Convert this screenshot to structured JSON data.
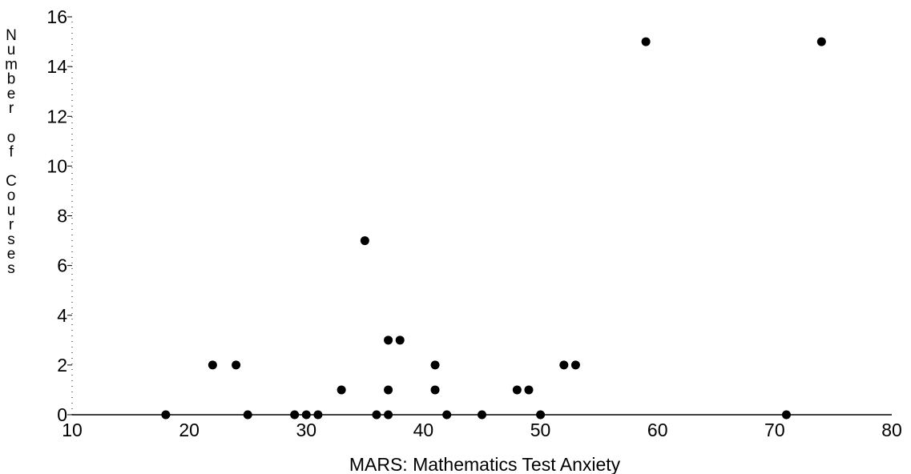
{
  "chart_data": {
    "type": "scatter",
    "title": "",
    "xlabel": "MARS: Mathematics Test Anxiety",
    "ylabel": "Number of Courses",
    "xlim": [
      10,
      80
    ],
    "ylim": [
      0,
      16
    ],
    "x_ticks": [
      10,
      20,
      30,
      40,
      50,
      60,
      70,
      80
    ],
    "y_ticks": [
      0,
      2,
      4,
      6,
      8,
      10,
      12,
      14,
      16
    ],
    "grid": false,
    "legend": "none",
    "marker_color": "#000000",
    "points": [
      {
        "x": 18,
        "y": 0
      },
      {
        "x": 22,
        "y": 2
      },
      {
        "x": 24,
        "y": 2
      },
      {
        "x": 25,
        "y": 0
      },
      {
        "x": 29,
        "y": 0
      },
      {
        "x": 30,
        "y": 0
      },
      {
        "x": 31,
        "y": 0
      },
      {
        "x": 33,
        "y": 1
      },
      {
        "x": 35,
        "y": 7
      },
      {
        "x": 36,
        "y": 0
      },
      {
        "x": 37,
        "y": 0
      },
      {
        "x": 37,
        "y": 1
      },
      {
        "x": 37,
        "y": 3
      },
      {
        "x": 38,
        "y": 3
      },
      {
        "x": 41,
        "y": 2
      },
      {
        "x": 41,
        "y": 1
      },
      {
        "x": 42,
        "y": 0
      },
      {
        "x": 45,
        "y": 0
      },
      {
        "x": 48,
        "y": 1
      },
      {
        "x": 49,
        "y": 1
      },
      {
        "x": 50,
        "y": 0
      },
      {
        "x": 52,
        "y": 2
      },
      {
        "x": 53,
        "y": 2
      },
      {
        "x": 59,
        "y": 15
      },
      {
        "x": 71,
        "y": 0
      },
      {
        "x": 74,
        "y": 15
      }
    ]
  }
}
